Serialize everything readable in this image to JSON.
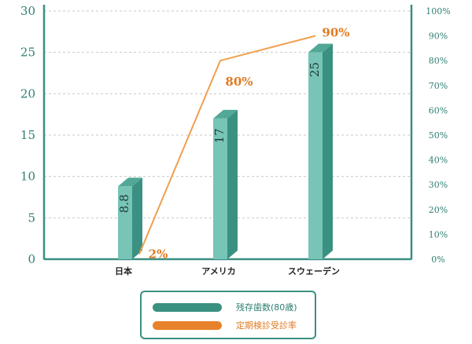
{
  "chart_data": {
    "type": "bar+line",
    "categories": [
      "日本",
      "アメリカ",
      "スウェーデン"
    ],
    "series": [
      {
        "name": "残存歯数(80歳)",
        "type": "bar",
        "axis": "left",
        "values": [
          8.8,
          17,
          25
        ],
        "value_labels": [
          "8.8",
          "17",
          "25"
        ],
        "color": "#78c4b6",
        "side_color": "#3a9181",
        "top_color": "#52a897"
      },
      {
        "name": "定期検診受診率",
        "type": "line",
        "axis": "right",
        "values": [
          2,
          80,
          90
        ],
        "value_labels": [
          "2%",
          "80%",
          "90%"
        ],
        "color": "#f0a050",
        "label_color": "#e07b22"
      }
    ],
    "left_axis": {
      "min": 0,
      "max": 30,
      "ticks": [
        "0",
        "5",
        "10",
        "15",
        "20",
        "25",
        "30"
      ]
    },
    "right_axis": {
      "min": 0,
      "max": 100,
      "ticks": [
        "0%",
        "10%",
        "20%",
        "30%",
        "40%",
        "50%",
        "60%",
        "70%",
        "80%",
        "90%",
        "100%"
      ]
    },
    "grid": true,
    "axis_color": "#3a8f83",
    "legend_placement": "bottom-center"
  }
}
